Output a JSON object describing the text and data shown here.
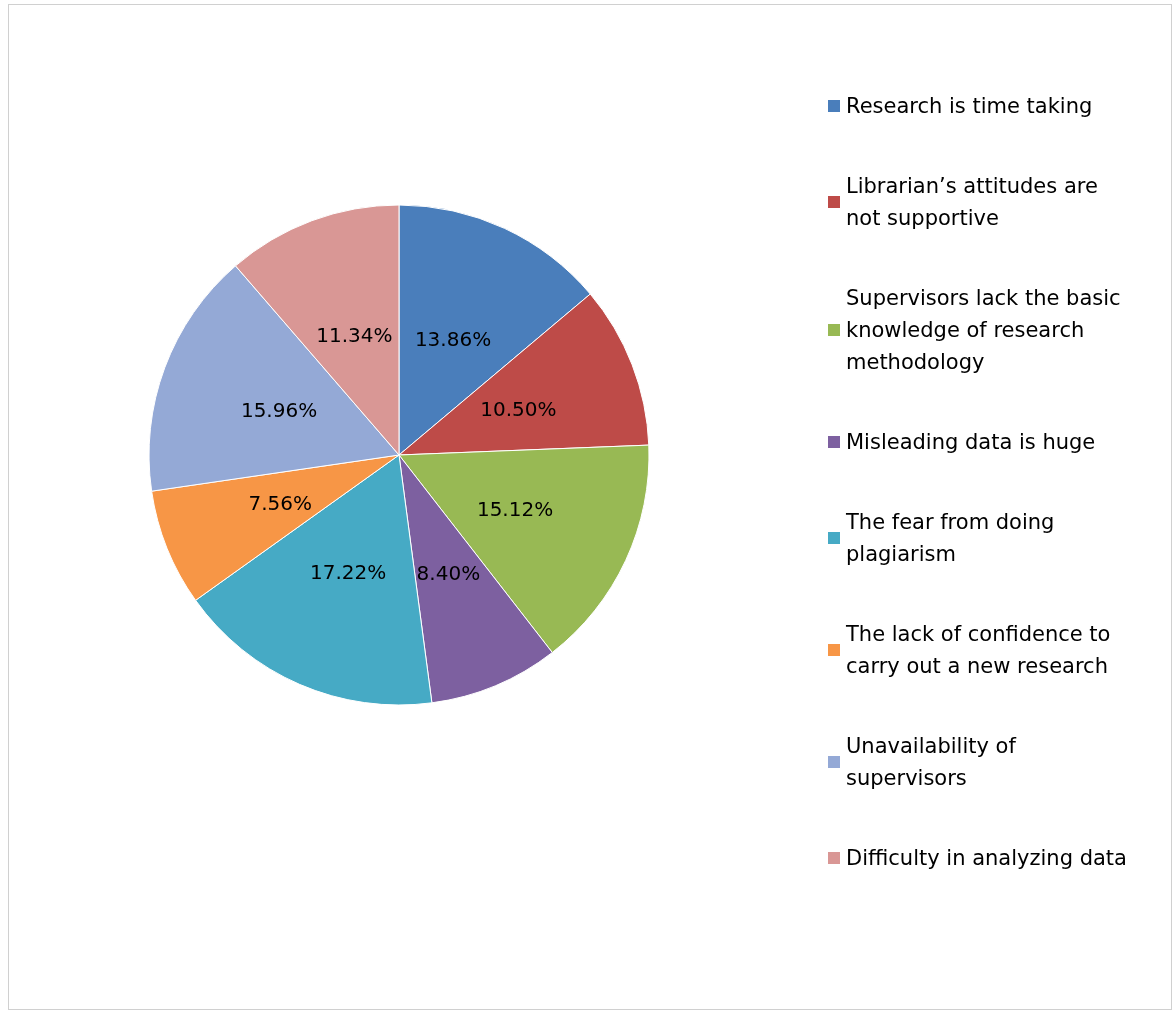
{
  "chart_data": {
    "type": "pie",
    "categories": [
      "Research is time taking",
      "Librarian’s attitudes are not supportive",
      "Supervisors lack the basic knowledge of research methodology",
      "Misleading data is huge",
      "The fear from doing plagiarism",
      "The lack of confidence to carry out a new research",
      "Unavailability of supervisors",
      "Difficulty in analyzing data"
    ],
    "values": [
      13.86,
      10.5,
      15.12,
      8.4,
      17.22,
      7.56,
      15.96,
      11.34
    ],
    "value_labels": [
      "13.86%",
      "10.50%",
      "15.12%",
      "8.40%",
      "17.22%",
      "7.56%",
      "15.96%",
      "11.34%"
    ],
    "colors": [
      "#4a7ebb",
      "#be4b48",
      "#98b954",
      "#7d60a0",
      "#46aac5",
      "#f79646",
      "#94a9d6",
      "#d99795"
    ],
    "legend": "right"
  }
}
